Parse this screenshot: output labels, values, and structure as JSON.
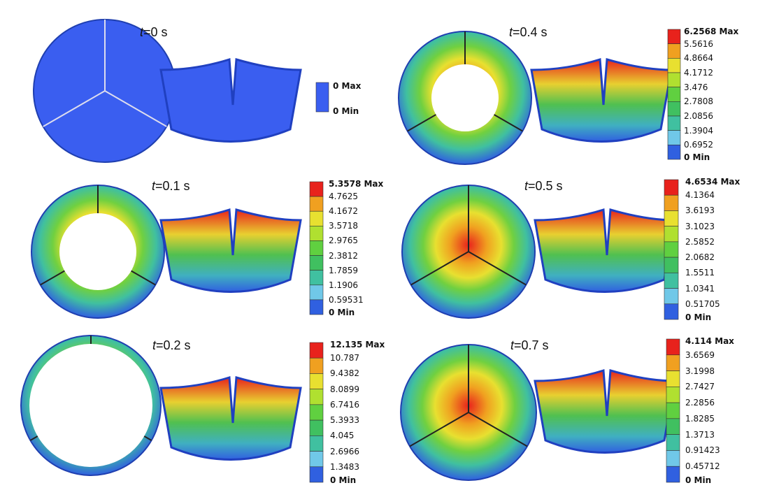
{
  "panels": [
    {
      "title": "t=0 s",
      "legend": [
        "0 Max",
        "0 Min"
      ]
    },
    {
      "title": "t=0.4 s",
      "legend": [
        "6.2568 Max",
        "5.5616",
        "4.8664",
        "4.1712",
        "3.476",
        "2.7808",
        "2.0856",
        "1.3904",
        "0.6952",
        "0 Min"
      ]
    },
    {
      "title": "t=0.1 s",
      "legend": [
        "5.3578 Max",
        "4.7625",
        "4.1672",
        "3.5718",
        "2.9765",
        "2.3812",
        "1.7859",
        "1.1906",
        "0.59531",
        "0 Min"
      ]
    },
    {
      "title": "t=0.5 s",
      "legend": [
        "4.6534 Max",
        "4.1364",
        "3.6193",
        "3.1023",
        "2.5852",
        "2.0682",
        "1.5511",
        "1.0341",
        "0.51705",
        "0 Min"
      ]
    },
    {
      "title": "t=0.2 s",
      "legend": [
        "12.135 Max",
        "10.787",
        "9.4382",
        "8.0899",
        "6.7416",
        "5.3933",
        "4.045",
        "2.6966",
        "1.3483",
        "0 Min"
      ]
    },
    {
      "title": "t=0.7 s",
      "legend": [
        "4.114 Max",
        "3.6569",
        "3.1998",
        "2.7427",
        "2.2856",
        "1.8285",
        "1.3713",
        "0.91423",
        "0.45712",
        "0 Min"
      ]
    }
  ]
}
